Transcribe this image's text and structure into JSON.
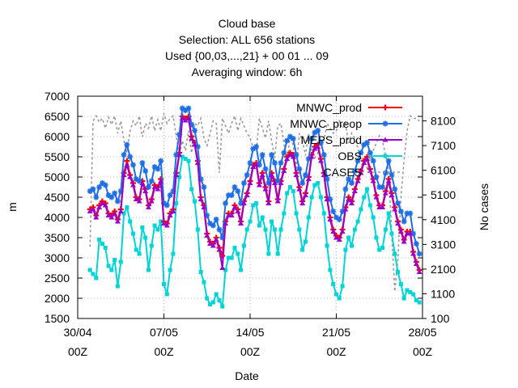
{
  "chart_data": {
    "type": "line",
    "title_lines": [
      "Cloud base",
      "Selection: ALL    656 stations",
      "Used {00,03,...,21} + 00 01 ... 09",
      "Averaging window:  6h"
    ],
    "xlabel": "Date",
    "ylabel": "m",
    "y2label": "No cases",
    "x_ticks": [
      {
        "pos": 0,
        "line1": "30/04",
        "line2": "00Z"
      },
      {
        "pos": 7,
        "line1": "07/05",
        "line2": "00Z"
      },
      {
        "pos": 14,
        "line1": "14/05",
        "line2": "00Z"
      },
      {
        "pos": 21,
        "line1": "21/05",
        "line2": "00Z"
      },
      {
        "pos": 28,
        "line1": "28/05",
        "line2": "00Z"
      }
    ],
    "xlim": [
      0,
      28
    ],
    "ylim": [
      1500,
      7000
    ],
    "y_ticks": [
      1500,
      2000,
      2500,
      3000,
      3500,
      4000,
      4500,
      5000,
      5500,
      6000,
      6500,
      7000
    ],
    "y2lim": [
      100,
      9100
    ],
    "y2_ticks": [
      100,
      1100,
      2100,
      3100,
      4100,
      5100,
      6100,
      7100,
      8100
    ],
    "grid": true,
    "legend_position": "top-right",
    "x": [
      1,
      1.25,
      1.5,
      1.75,
      2,
      2.25,
      2.5,
      2.75,
      3,
      3.25,
      3.5,
      3.75,
      4,
      4.25,
      4.5,
      4.75,
      5,
      5.25,
      5.5,
      5.75,
      6,
      6.25,
      6.5,
      6.75,
      7,
      7.25,
      7.5,
      7.75,
      8,
      8.25,
      8.5,
      8.75,
      9,
      9.25,
      9.5,
      9.75,
      10,
      10.25,
      10.5,
      10.75,
      11,
      11.25,
      11.5,
      11.75,
      12,
      12.25,
      12.5,
      12.75,
      13,
      13.25,
      13.5,
      13.75,
      14,
      14.25,
      14.5,
      14.75,
      15,
      15.25,
      15.5,
      15.75,
      16,
      16.25,
      16.5,
      16.75,
      17,
      17.25,
      17.5,
      17.75,
      18,
      18.25,
      18.5,
      18.75,
      19,
      19.25,
      19.5,
      19.75,
      20,
      20.25,
      20.5,
      20.75,
      21,
      21.25,
      21.5,
      21.75,
      22,
      22.25,
      22.5,
      22.75,
      23,
      23.25,
      23.5,
      23.75,
      24,
      24.25,
      24.5,
      24.75,
      25,
      25.25,
      25.5,
      25.75,
      26,
      26.25,
      26.5,
      26.75,
      27,
      27.25,
      27.5,
      27.75
    ],
    "series": [
      {
        "name": "MNWC_prod",
        "color": "#ff0000",
        "marker": "plus",
        "values": [
          4200,
          4250,
          4050,
          4300,
          4400,
          4350,
          4100,
          4050,
          4150,
          3950,
          4200,
          5100,
          5400,
          5050,
          4850,
          4500,
          4450,
          4900,
          4700,
          4300,
          4450,
          4800,
          4750,
          4950,
          3900,
          3850,
          4100,
          4200,
          5100,
          5600,
          6500,
          6450,
          6500,
          6000,
          5850,
          5400,
          4500,
          4300,
          3600,
          3400,
          3350,
          3500,
          3250,
          3050,
          3900,
          4100,
          4100,
          4300,
          4200,
          3900,
          4400,
          4600,
          4900,
          5300,
          5350,
          4850,
          5100,
          4750,
          4400,
          5100,
          4900,
          4450,
          4900,
          5200,
          5500,
          5600,
          5550,
          5100,
          4750,
          4400,
          4600,
          5000,
          5550,
          5750,
          5800,
          5450,
          5100,
          4500,
          4000,
          3700,
          3550,
          3500,
          3700,
          4250,
          4500,
          4400,
          4700,
          4950,
          5150,
          5400,
          5500,
          5200,
          4950,
          4550,
          4300,
          4300,
          4650,
          4950,
          4600,
          4250,
          3900,
          3700,
          3450,
          3650,
          3650,
          3150,
          2900,
          2700
        ]
      },
      {
        "name": "MNWC_preop",
        "color": "#1e6ee6",
        "marker": "star",
        "values": [
          4650,
          4700,
          4500,
          4750,
          4850,
          4800,
          4550,
          4500,
          4600,
          4400,
          4650,
          5550,
          5800,
          5500,
          5300,
          4950,
          4900,
          5350,
          5150,
          4750,
          4900,
          5250,
          5200,
          5400,
          4350,
          4300,
          4550,
          4650,
          5550,
          6050,
          6700,
          6650,
          6700,
          6300,
          6150,
          5750,
          4950,
          4750,
          4050,
          3850,
          3800,
          3950,
          3700,
          3500,
          4350,
          4550,
          4550,
          4750,
          4650,
          4350,
          4850,
          5050,
          5350,
          5700,
          5750,
          5300,
          5550,
          5200,
          4850,
          5550,
          5350,
          4900,
          5350,
          5600,
          5900,
          6000,
          5950,
          5550,
          5200,
          4850,
          5050,
          5450,
          5950,
          6100,
          6150,
          5850,
          5550,
          4950,
          4450,
          4150,
          4000,
          3950,
          4150,
          4700,
          4950,
          4850,
          5150,
          5400,
          5600,
          5800,
          5850,
          5600,
          5400,
          5000,
          4750,
          4750,
          5100,
          5400,
          5050,
          4700,
          4350,
          4150,
          3900,
          4100,
          4100,
          3600,
          3350,
          3100
        ]
      },
      {
        "name": "MEPS_prod",
        "color": "#9900cc",
        "marker": "triangle",
        "values": [
          4150,
          4200,
          4000,
          4250,
          4350,
          4300,
          4050,
          4000,
          4100,
          3900,
          4150,
          5050,
          5300,
          5000,
          4800,
          4450,
          4400,
          4850,
          4650,
          4250,
          4400,
          4750,
          4700,
          4900,
          3850,
          3800,
          4050,
          4150,
          5050,
          5550,
          6450,
          6400,
          6450,
          5950,
          5800,
          5350,
          4450,
          4250,
          3550,
          3350,
          3300,
          3450,
          3200,
          2750,
          3850,
          4050,
          4050,
          4250,
          4150,
          3850,
          4350,
          4550,
          4850,
          5250,
          5300,
          4800,
          5050,
          4700,
          4350,
          5050,
          4850,
          4400,
          4850,
          5150,
          5450,
          5550,
          5500,
          5050,
          4700,
          4350,
          4550,
          4950,
          5500,
          5700,
          5750,
          5400,
          5050,
          4450,
          3950,
          3650,
          3500,
          3450,
          3650,
          4200,
          4450,
          4350,
          4650,
          4900,
          5100,
          5350,
          5450,
          5150,
          4900,
          4500,
          4250,
          4250,
          4600,
          4900,
          4550,
          4200,
          3850,
          3650,
          3400,
          3600,
          3600,
          3100,
          2850,
          2650
        ]
      },
      {
        "name": "OBS",
        "color": "#00d4d4",
        "marker": "square",
        "values": [
          2700,
          2600,
          2500,
          3450,
          3350,
          3250,
          2800,
          2700,
          2950,
          2300,
          2900,
          4100,
          4250,
          3900,
          3600,
          3200,
          3100,
          3750,
          3500,
          2700,
          3300,
          3800,
          3700,
          3900,
          2350,
          2100,
          2700,
          3100,
          4350,
          5000,
          5500,
          5450,
          5400,
          4700,
          4400,
          3700,
          2650,
          2400,
          2000,
          1850,
          1900,
          2100,
          1950,
          1800,
          2700,
          3000,
          3000,
          3250,
          3100,
          2700,
          3300,
          3700,
          3900,
          4300,
          4350,
          3800,
          4000,
          3700,
          3100,
          3900,
          3700,
          3100,
          3700,
          4100,
          4600,
          4750,
          4650,
          4100,
          3700,
          3200,
          3400,
          4000,
          4500,
          4800,
          4850,
          4500,
          4100,
          3300,
          2700,
          2350,
          2100,
          2000,
          2300,
          3200,
          3500,
          3300,
          3700,
          3900,
          4200,
          4500,
          4700,
          4300,
          4000,
          3500,
          3200,
          3250,
          3700,
          4100,
          3600,
          3100,
          2650,
          2350,
          2000,
          2200,
          2150,
          2100,
          1950,
          1900
        ]
      },
      {
        "name": "CASES",
        "color": "#999999",
        "dashed": true,
        "axis": "y2",
        "values": [
          3000,
          8100,
          8300,
          8050,
          8200,
          7800,
          8250,
          7950,
          8300,
          7600,
          8100,
          7300,
          6800,
          7700,
          8100,
          7900,
          8300,
          7450,
          8000,
          7800,
          8300,
          7700,
          8150,
          7700,
          8400,
          8000,
          8200,
          8300,
          7500,
          6700,
          7300,
          6900,
          7700,
          6800,
          8000,
          7900,
          8200,
          7400,
          7100,
          7600,
          8100,
          8000,
          6000,
          8200,
          7900,
          7600,
          8000,
          8300,
          7700,
          8200,
          7900,
          7600,
          7400,
          7000,
          6900,
          8200,
          7800,
          7400,
          8100,
          7300,
          6600,
          7900,
          8000,
          7200,
          6400,
          7500,
          7100,
          6200,
          7600,
          7300,
          6700,
          7600,
          6900,
          6600,
          6800,
          7200,
          7300,
          8000,
          7800,
          7600,
          7700,
          8100,
          7800,
          8000,
          7200,
          7600,
          7400,
          7000,
          6600,
          6500,
          6200,
          6600,
          6900,
          7200,
          7500,
          7300,
          6700,
          6100,
          3500,
          1200,
          2500,
          5000,
          6500,
          7700,
          8300,
          8200,
          8200,
          8100
        ]
      }
    ]
  }
}
